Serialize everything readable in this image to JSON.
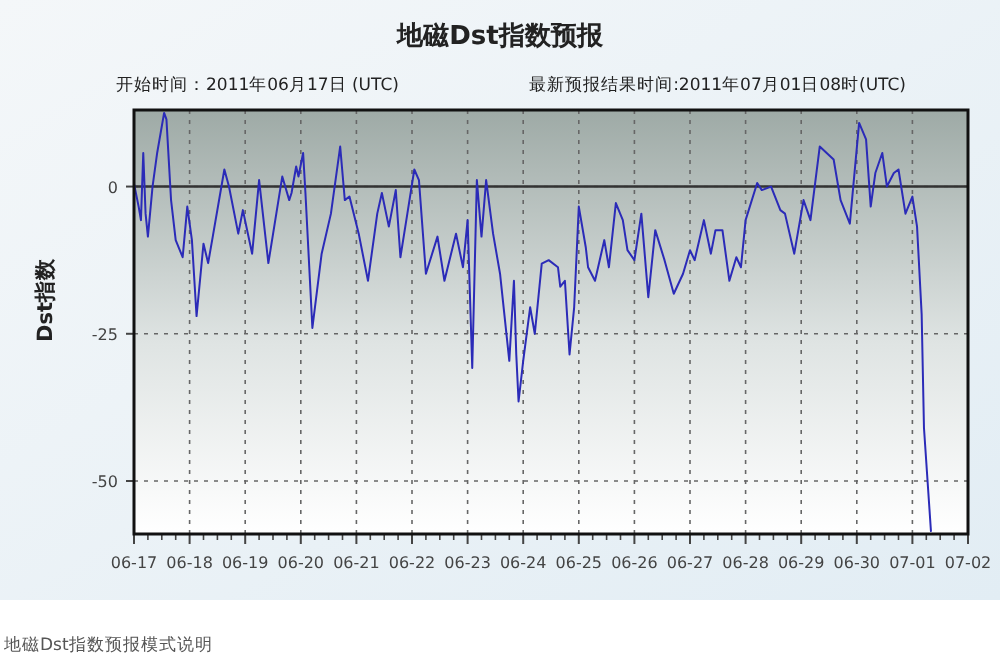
{
  "chart_data": {
    "type": "line",
    "title": "地磁Dst指数预报",
    "subtitle": "开始时间：2011年06月17日 (UTC)",
    "ylabel": "Dst指数",
    "annotations": [
      "最新预报结果时间:2011年07月01日08时(UTC)",
      "地磁Dst指数预报模式说明"
    ],
    "color": "#2b2bb8",
    "grid": true,
    "marker": "none",
    "line_style": "solid",
    "ref_lines": [
      {
        "axis": "y",
        "value": 0,
        "color": "#333333"
      }
    ],
    "xlim": [
      "2011-06-17",
      "2011-07-02"
    ],
    "xticks": [
      {
        "value": "2011-06-17",
        "label": "06-17"
      },
      {
        "value": "2011-06-18",
        "label": "06-18"
      },
      {
        "value": "2011-06-19",
        "label": "06-19"
      },
      {
        "value": "2011-06-20",
        "label": "06-20"
      },
      {
        "value": "2011-06-21",
        "label": "06-21"
      },
      {
        "value": "2011-06-22",
        "label": "06-22"
      },
      {
        "value": "2011-06-23",
        "label": "06-23"
      },
      {
        "value": "2011-06-24",
        "label": "06-24"
      },
      {
        "value": "2011-06-25",
        "label": "06-25"
      },
      {
        "value": "2011-06-26",
        "label": "06-26"
      },
      {
        "value": "2011-06-27",
        "label": "06-27"
      },
      {
        "value": "2011-06-28",
        "label": "06-28"
      },
      {
        "value": "2011-06-29",
        "label": "06-29"
      },
      {
        "value": "2011-06-30",
        "label": "06-30"
      },
      {
        "value": "2011-07-01",
        "label": "07-01"
      },
      {
        "value": "2011-07-02",
        "label": "07-02"
      }
    ],
    "ylim": [
      -59,
      13
    ],
    "yticks": [
      0,
      -25,
      -50
    ],
    "x": [
      "2011-06-17T00:00",
      "2011-06-17T02:00",
      "2011-06-17T03:00",
      "2011-06-17T04:00",
      "2011-06-17T05:00",
      "2011-06-17T06:00",
      "2011-06-17T08:00",
      "2011-06-17T10:00",
      "2011-06-17T13:00",
      "2011-06-17T14:00",
      "2011-06-17T16:00",
      "2011-06-17T18:00",
      "2011-06-17T21:00",
      "2011-06-17T23:00",
      "2011-06-18T01:00",
      "2011-06-18T03:00",
      "2011-06-18T06:00",
      "2011-06-18T08:00",
      "2011-06-18T10:00",
      "2011-06-18T15:00",
      "2011-06-18T17:00",
      "2011-06-18T21:00",
      "2011-06-18T23:00",
      "2011-06-19T03:00",
      "2011-06-19T06:00",
      "2011-06-19T10:00",
      "2011-06-19T16:00",
      "2011-06-19T19:00",
      "2011-06-19T20:00",
      "2011-06-19T22:00",
      "2011-06-19T23:00",
      "2011-06-20T01:00",
      "2011-06-20T02:00",
      "2011-06-20T05:00",
      "2011-06-20T09:00",
      "2011-06-20T13:00",
      "2011-06-20T17:00",
      "2011-06-20T19:00",
      "2011-06-20T21:00",
      "2011-06-21T01:00",
      "2011-06-21T05:00",
      "2011-06-21T09:00",
      "2011-06-21T11:00",
      "2011-06-21T14:00",
      "2011-06-21T17:00",
      "2011-06-21T19:00",
      "2011-06-21T22:00",
      "2011-06-22T01:00",
      "2011-06-22T03:00",
      "2011-06-22T06:00",
      "2011-06-22T11:00",
      "2011-06-22T14:00",
      "2011-06-22T19:00",
      "2011-06-22T22:00",
      "2011-06-23T00:00",
      "2011-06-23T02:00",
      "2011-06-23T04:00",
      "2011-06-23T06:00",
      "2011-06-23T08:00",
      "2011-06-23T11:00",
      "2011-06-23T14:00",
      "2011-06-23T18:00",
      "2011-06-23T20:00",
      "2011-06-23T21:00",
      "2011-06-23T22:00",
      "2011-06-24T00:00",
      "2011-06-24T03:00",
      "2011-06-24T05:00",
      "2011-06-24T08:00",
      "2011-06-24T11:00",
      "2011-06-24T15:00",
      "2011-06-24T16:00",
      "2011-06-24T18:00",
      "2011-06-24T20:00",
      "2011-06-24T22:00",
      "2011-06-25T00:00",
      "2011-06-25T03:00",
      "2011-06-25T04:00",
      "2011-06-25T07:00",
      "2011-06-25T11:00",
      "2011-06-25T13:00",
      "2011-06-25T16:00",
      "2011-06-25T19:00",
      "2011-06-25T21:00",
      "2011-06-26T00:00",
      "2011-06-26T03:00",
      "2011-06-26T06:00",
      "2011-06-26T09:00",
      "2011-06-26T13:00",
      "2011-06-26T17:00",
      "2011-06-26T21:00",
      "2011-06-27T00:00",
      "2011-06-27T02:00",
      "2011-06-27T06:00",
      "2011-06-27T09:00",
      "2011-06-27T11:00",
      "2011-06-27T14:00",
      "2011-06-27T17:00",
      "2011-06-27T20:00",
      "2011-06-27T22:00",
      "2011-06-28T00:00",
      "2011-06-28T05:00",
      "2011-06-28T07:00",
      "2011-06-28T11:00",
      "2011-06-28T15:00",
      "2011-06-28T17:00",
      "2011-06-28T21:00",
      "2011-06-29T01:00",
      "2011-06-29T04:00",
      "2011-06-29T08:00",
      "2011-06-29T11:00",
      "2011-06-29T14:00",
      "2011-06-29T17:00",
      "2011-06-29T21:00",
      "2011-06-30T01:00",
      "2011-06-30T04:00",
      "2011-06-30T06:00",
      "2011-06-30T08:00",
      "2011-06-30T11:00",
      "2011-06-30T13:00",
      "2011-06-30T16:00",
      "2011-06-30T18:00",
      "2011-06-30T21:00",
      "2011-07-01T00:00",
      "2011-07-01T02:00",
      "2011-07-01T04:00",
      "2011-07-01T05:00",
      "2011-07-01T08:00"
    ],
    "values": [
      0.5,
      -3.4,
      -5.7,
      5.7,
      -4.6,
      -8.5,
      0,
      5.7,
      12.5,
      11.4,
      -2.3,
      -9.1,
      -12,
      -3.4,
      -9.1,
      -22,
      -9.7,
      -13,
      -8.5,
      2.9,
      0,
      -8,
      -4,
      -11.4,
      1.1,
      -13,
      1.7,
      -2.3,
      -1.1,
      3.4,
      1.7,
      5.7,
      -1.1,
      -24,
      -11.4,
      -4.6,
      6.8,
      -2.3,
      -1.7,
      -8,
      -16,
      -4.6,
      -1.1,
      -6.8,
      -0.6,
      -12,
      -4.6,
      2.9,
      1.1,
      -14.8,
      -8.5,
      -16,
      -8,
      -13.7,
      -5.7,
      -30.8,
      1.1,
      -8.5,
      1.1,
      -8,
      -14.8,
      -29.6,
      -16,
      -28.5,
      -36.5,
      -29.6,
      -20.5,
      -25,
      -13.1,
      -12.5,
      -13.7,
      -17,
      -16,
      -28.5,
      -20.5,
      -3.4,
      -10.3,
      -13.7,
      -16,
      -9.1,
      -13.7,
      -2.8,
      -5.7,
      -10.8,
      -12.5,
      -4.6,
      -18.8,
      -7.4,
      -12.5,
      -18.2,
      -14.8,
      -10.8,
      -12.5,
      -5.7,
      -11.4,
      -7.4,
      -7.4,
      -16,
      -12,
      -13.7,
      -5.7,
      0.6,
      -0.6,
      0,
      -4,
      -4.6,
      -11.4,
      -2.3,
      -5.7,
      6.8,
      5.7,
      4.6,
      -2.3,
      -6.3,
      10.8,
      8,
      -3.4,
      2.3,
      5.7,
      0,
      2.3,
      2.9,
      -4.6,
      -1.7,
      -6.8,
      -21.7,
      -41,
      -58.5
    ]
  }
}
